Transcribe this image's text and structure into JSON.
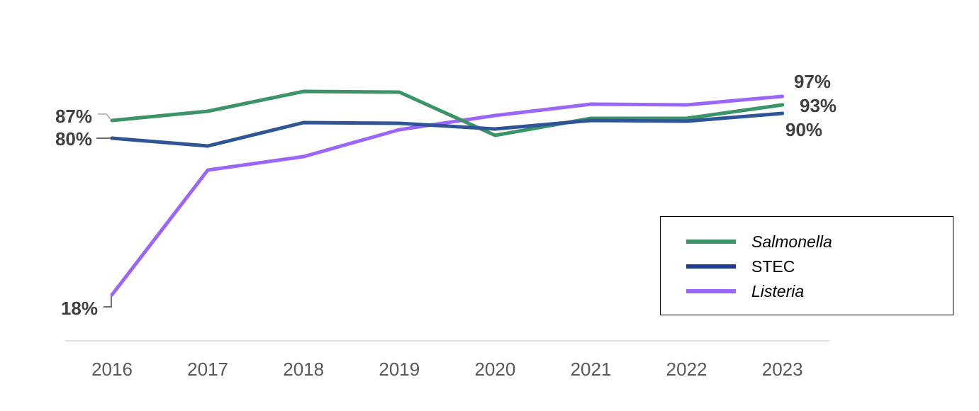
{
  "chart_data": {
    "type": "line",
    "categories": [
      "2016",
      "2017",
      "2018",
      "2019",
      "2020",
      "2021",
      "2022",
      "2023"
    ],
    "series": [
      {
        "name": "Salmonella",
        "color": "#3a9468",
        "italic": true,
        "values": [
          87,
          88.5,
          92,
          91.9,
          82.6,
          86.4,
          86.4,
          93
        ],
        "labels": [
          {
            "index": 0,
            "text": "87%"
          },
          {
            "index": 7,
            "text": "93%"
          }
        ]
      },
      {
        "name": "STEC",
        "color": "#2f5597",
        "italic": false,
        "values": [
          80,
          78.6,
          83.6,
          83.5,
          82.5,
          83.4,
          83.3,
          90
        ],
        "labels": [
          {
            "index": 0,
            "text": "80%"
          },
          {
            "index": 7,
            "text": "90%"
          }
        ]
      },
      {
        "name": "Listeria",
        "color": "#9b66fa",
        "italic": true,
        "values": [
          18,
          71,
          74.5,
          79.6,
          82,
          83.8,
          83.7,
          97
        ],
        "labels": [
          {
            "index": 0,
            "text": "18%"
          },
          {
            "index": 7,
            "text": "97%"
          }
        ]
      }
    ],
    "legend_position": "bottom-right",
    "legend_swatch_colors": [
      "#3a9468",
      "#1f3a93",
      "#9b66fa"
    ],
    "grid": false,
    "xlabel": "",
    "ylabel": ""
  }
}
